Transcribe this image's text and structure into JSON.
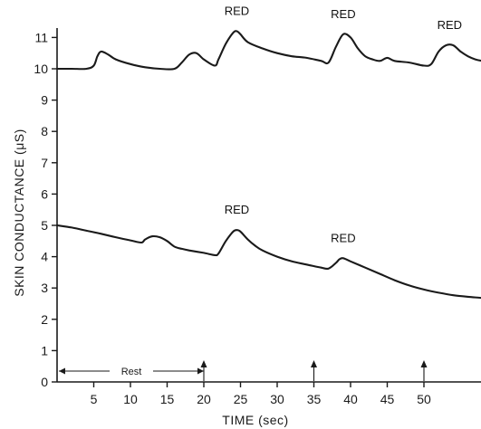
{
  "chart_data": {
    "type": "line",
    "title": "",
    "xlabel": "TIME (sec)",
    "ylabel": "SKIN CONDUCTANCE (μS)",
    "xlim": [
      0,
      58
    ],
    "ylim": [
      0,
      11.3
    ],
    "x_ticks": [
      5,
      10,
      15,
      20,
      25,
      30,
      35,
      40,
      45,
      50
    ],
    "y_ticks": [
      0,
      1,
      2,
      3,
      4,
      5,
      6,
      7,
      8,
      9,
      10,
      11
    ],
    "grid": false,
    "series": [
      {
        "x": [
          0,
          2,
          4,
          5,
          5.5,
          6,
          7,
          8,
          10,
          12,
          14,
          16,
          17,
          18,
          19,
          20,
          21.5,
          22,
          23,
          24,
          24.5,
          25,
          26,
          28,
          30,
          32,
          34,
          36,
          37,
          38,
          39,
          40,
          41,
          42,
          43,
          44,
          45,
          46,
          48,
          50,
          51,
          52,
          53,
          54,
          55,
          56,
          57,
          58
        ],
        "y": [
          10.0,
          10.0,
          10.0,
          10.1,
          10.4,
          10.55,
          10.45,
          10.3,
          10.15,
          10.05,
          10.0,
          10.0,
          10.2,
          10.45,
          10.5,
          10.3,
          10.1,
          10.3,
          10.8,
          11.15,
          11.2,
          11.1,
          10.85,
          10.65,
          10.5,
          10.4,
          10.35,
          10.25,
          10.2,
          10.7,
          11.1,
          11.0,
          10.65,
          10.4,
          10.3,
          10.25,
          10.35,
          10.25,
          10.2,
          10.1,
          10.15,
          10.55,
          10.75,
          10.75,
          10.55,
          10.4,
          10.3,
          10.25
        ]
      },
      {
        "x": [
          0,
          2,
          4,
          6,
          8,
          10,
          11.5,
          12,
          13,
          14,
          15,
          16,
          17,
          18,
          20,
          21.5,
          22,
          23,
          24,
          24.5,
          25,
          26,
          27,
          28,
          30,
          32,
          34,
          36,
          37,
          38,
          38.5,
          39,
          40,
          42,
          44,
          46,
          48,
          50,
          52,
          54,
          56,
          58
        ],
        "y": [
          5.0,
          4.93,
          4.83,
          4.73,
          4.62,
          4.52,
          4.45,
          4.55,
          4.65,
          4.62,
          4.5,
          4.32,
          4.25,
          4.2,
          4.12,
          4.05,
          4.1,
          4.5,
          4.8,
          4.85,
          4.8,
          4.55,
          4.35,
          4.2,
          4.0,
          3.85,
          3.75,
          3.65,
          3.62,
          3.8,
          3.92,
          3.95,
          3.85,
          3.65,
          3.45,
          3.25,
          3.08,
          2.95,
          2.85,
          2.77,
          2.72,
          2.68
        ]
      }
    ],
    "annotations": [
      {
        "text": "RED",
        "x": 24.5,
        "y": 11.2
      },
      {
        "text": "RED",
        "x": 39,
        "y": 11.1
      },
      {
        "text": "RED",
        "x": 53.5,
        "y": 10.75
      },
      {
        "text": "RED",
        "x": 24.5,
        "y": 4.85
      },
      {
        "text": "RED",
        "x": 39,
        "y": 3.95
      }
    ],
    "rest_label": "Rest",
    "rest_range": [
      0,
      20
    ],
    "event_markers_x": [
      20,
      35,
      50
    ]
  }
}
